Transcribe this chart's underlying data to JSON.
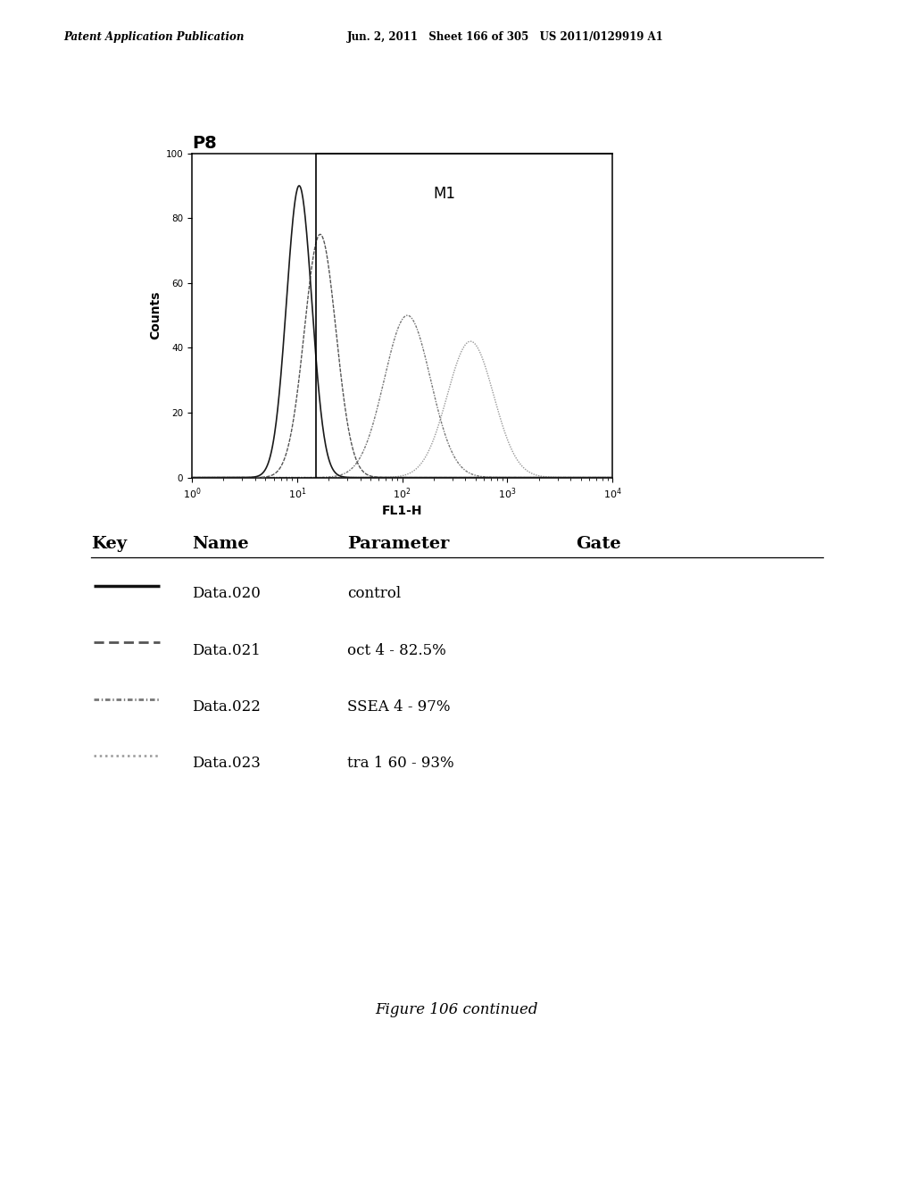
{
  "header_left": "Patent Application Publication",
  "header_right": "Jun. 2, 2011   Sheet 166 of 305   US 2011/0129919 A1",
  "plot_title": "P8",
  "xlabel": "FL1-H",
  "ylabel": "Counts",
  "yticks": [
    0,
    20,
    40,
    60,
    80,
    100
  ],
  "xlog_min": 0,
  "xlog_max": 4,
  "gate_label": "M1",
  "gate_x_log": 1.18,
  "figure_caption": "Figure 106 continued",
  "key_headers": [
    "Key",
    "Name",
    "Parameter",
    "Gate"
  ],
  "key_entries": [
    {
      "name": "Data.020",
      "parameter": "control"
    },
    {
      "name": "Data.021",
      "parameter": "oct 4 - 82.5%"
    },
    {
      "name": "Data.022",
      "parameter": "SSEA 4 - 97%"
    },
    {
      "name": "Data.023",
      "parameter": "tra 1 60 - 93%"
    }
  ],
  "curves": [
    {
      "mu_log": 1.02,
      "sigma_log": 0.12,
      "amp": 90
    },
    {
      "mu_log": 1.22,
      "sigma_log": 0.15,
      "amp": 75
    },
    {
      "mu_log": 2.05,
      "sigma_log": 0.22,
      "amp": 50
    },
    {
      "mu_log": 2.65,
      "sigma_log": 0.22,
      "amp": 42
    }
  ],
  "line_colors": [
    "#1a1a1a",
    "#555555",
    "#777777",
    "#999999"
  ],
  "background_color": "#ffffff"
}
